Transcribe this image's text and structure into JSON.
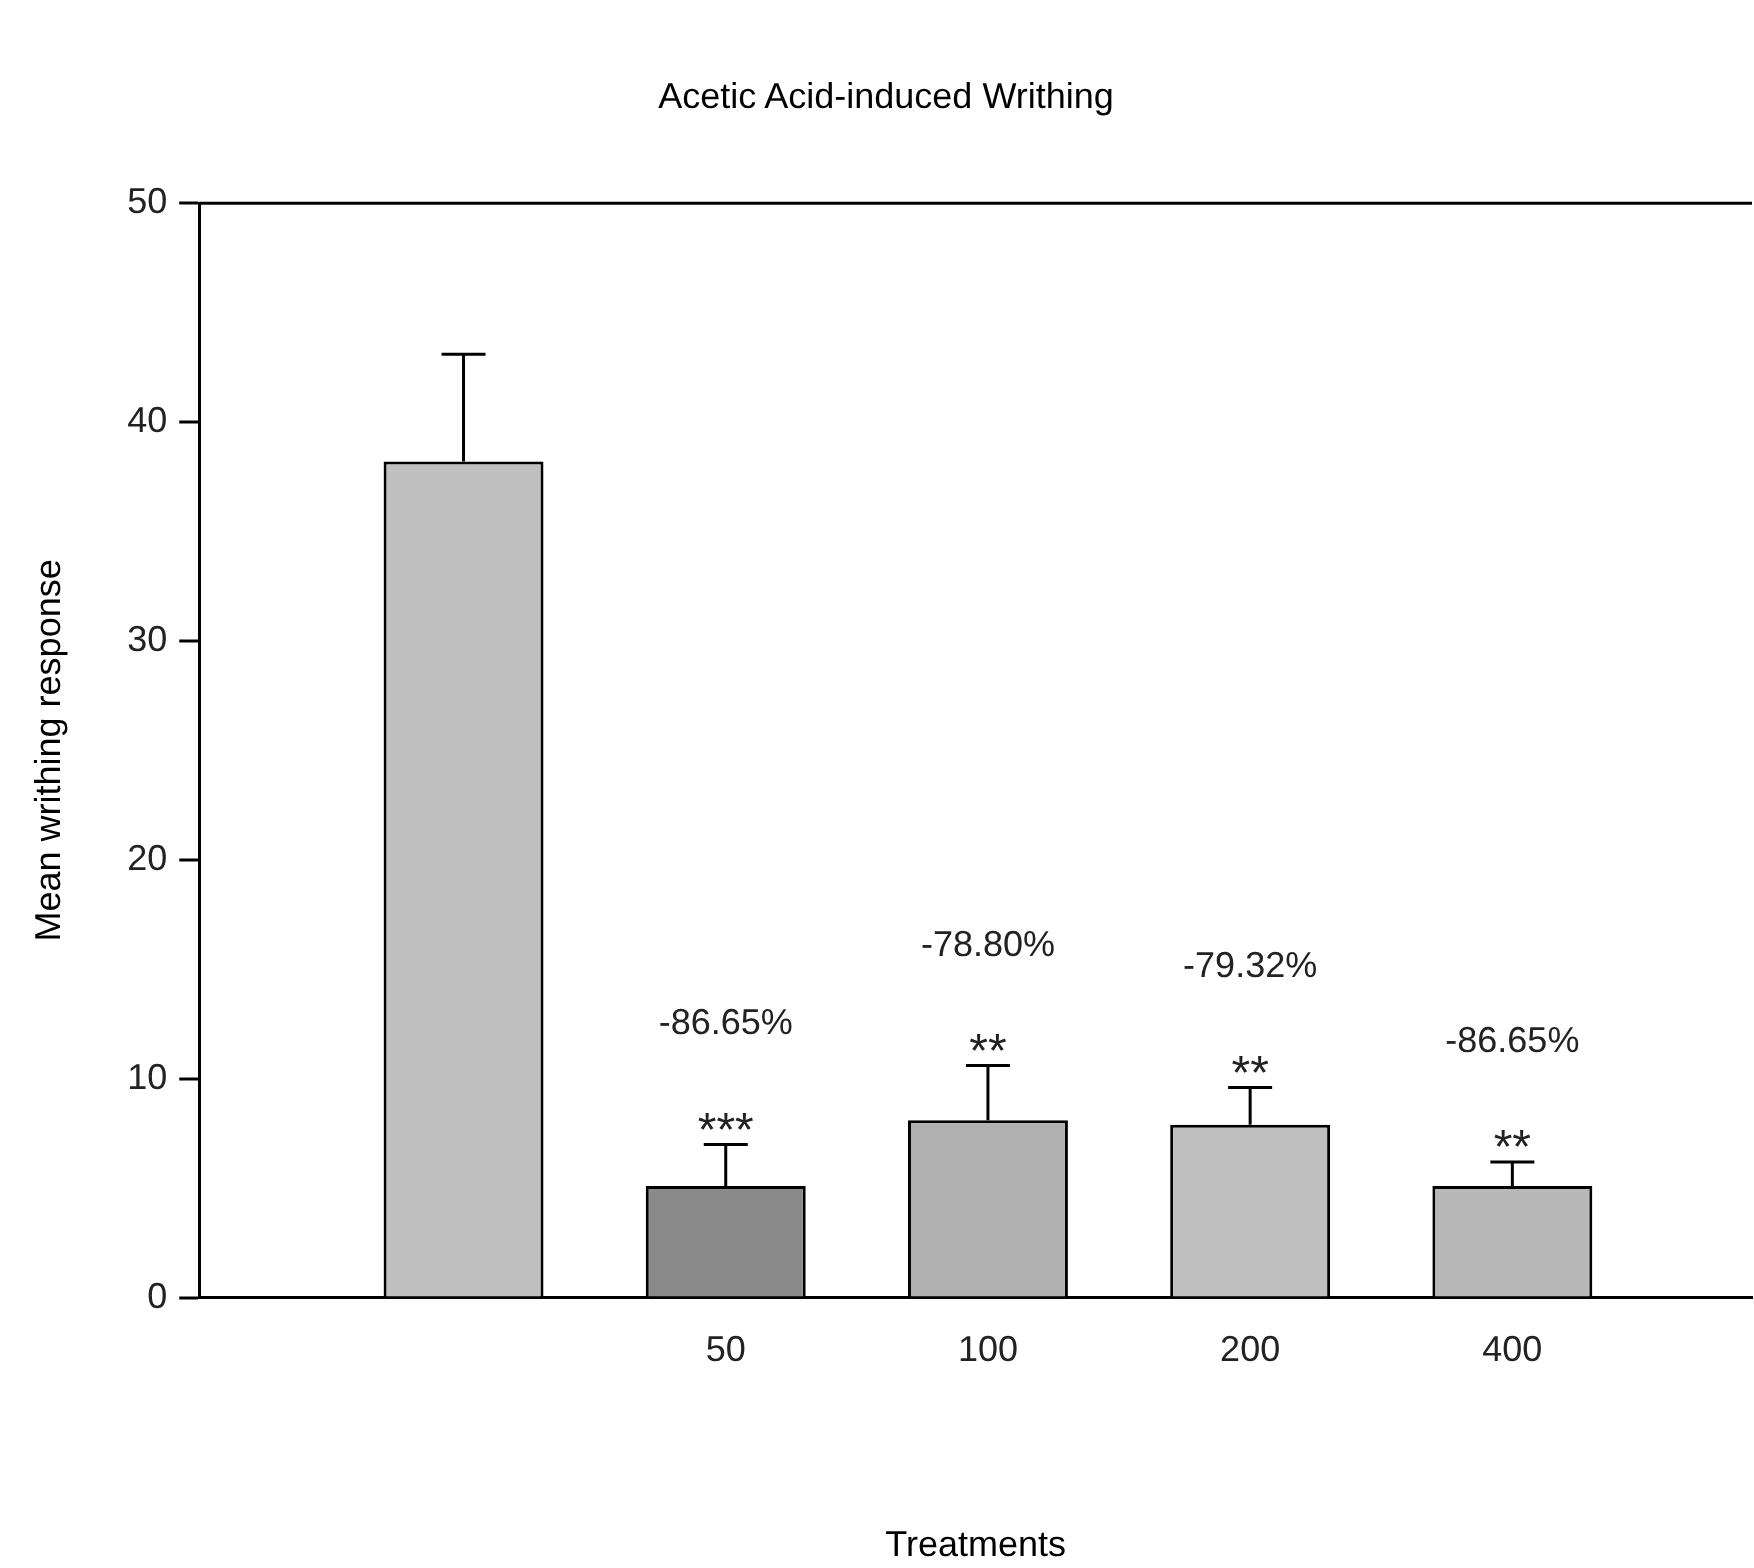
{
  "chart_data": {
    "type": "bar",
    "title": "Acetic Acid-induced Writhing",
    "xlabel": "Treatments",
    "ylabel": "Mean writhing response",
    "categories": [
      null,
      "50",
      "100",
      "200",
      "400"
    ],
    "values": [
      38.2,
      5.1,
      8.1,
      7.9,
      5.1
    ],
    "colors": [
      "#c0c0c0",
      "#8a8a8a",
      "#b0b0b0",
      "#c0c0c0",
      "#b8b8b8"
    ],
    "errors": [
      [
        38.2,
        43.1
      ],
      [
        5.1,
        7.0
      ],
      [
        8.1,
        10.6
      ],
      [
        7.9,
        9.6
      ],
      [
        5.1,
        6.2
      ]
    ],
    "ylim": [
      0,
      50
    ],
    "yticks": [
      0,
      10,
      20,
      30,
      40,
      50
    ],
    "grid": false,
    "legend": false,
    "annotations": [
      "-86.65%",
      "***",
      "-78.80%",
      "**",
      "-79.32%",
      "**",
      "-86.65%",
      "**"
    ]
  }
}
